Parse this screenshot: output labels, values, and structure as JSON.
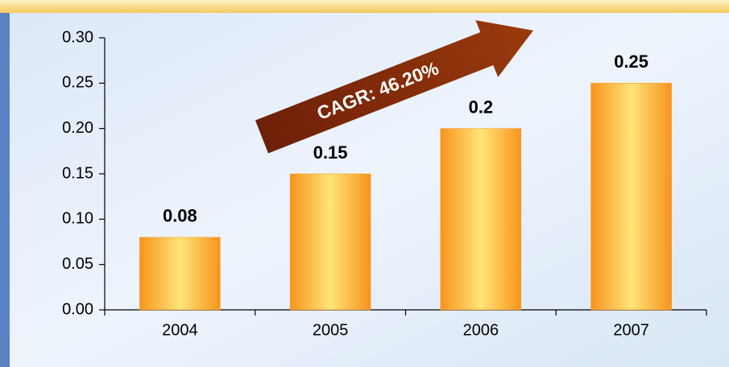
{
  "chart_data": {
    "type": "bar",
    "categories": [
      "2004",
      "2005",
      "2006",
      "2007"
    ],
    "values": [
      0.08,
      0.15,
      0.2,
      0.25
    ],
    "color": "#f7941d",
    "ylim": [
      0,
      0.3
    ],
    "yticks": [
      {
        "value": 0,
        "label": "0.00"
      },
      0.05,
      {
        "value": 0.1,
        "label": "0.10"
      },
      0.15,
      {
        "value": 0.2,
        "label": "0.20"
      },
      0.25,
      {
        "value": 0.3,
        "label": "0.30"
      }
    ],
    "annotation": "CAGR: 46.20%"
  }
}
